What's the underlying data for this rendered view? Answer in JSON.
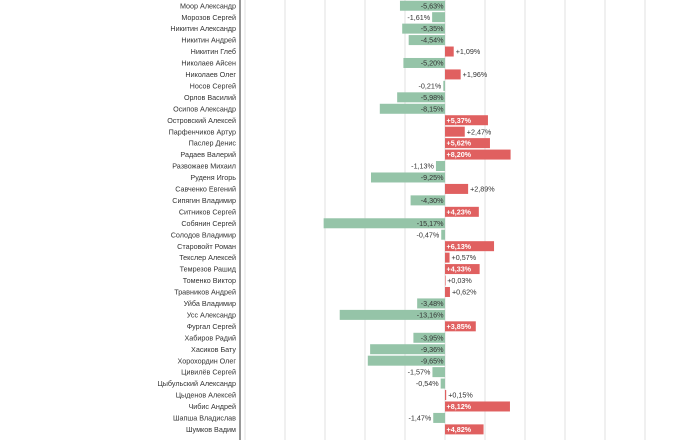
{
  "chart_data": {
    "type": "bar",
    "orientation": "horizontal",
    "grid": true,
    "xlim": [
      -30,
      25
    ],
    "grid_step": 5,
    "colors": {
      "positive": "#e06060",
      "negative": "#95c4a8",
      "grid": "#e2e2e2",
      "axis": "#333333"
    },
    "categories": [
      "Моор Александр",
      "Морозов Сергей",
      "Никитин Александр",
      "Никитин Андрей",
      "Никитин Глеб",
      "Николаев Айсен",
      "Николаев Олег",
      "Носов Сергей",
      "Орлов Василий",
      "Осипов Александр",
      "Островский Алексей",
      "Парфенчиков Артур",
      "Паслер Денис",
      "Радаев Валерий",
      "Развожаев Михаил",
      "Руденя Игорь",
      "Савченко Евгений",
      "Сипягин Владимир",
      "Ситников Сергей",
      "Собянин Сергей",
      "Солодов Владимир",
      "Старовойт Роман",
      "Текслер Алексей",
      "Темрезов Рашид",
      "Томенко Виктор",
      "Травников Андрей",
      "Уйба Владимир",
      "Усс Александр",
      "Фургал Сергей",
      "Хабиров Радий",
      "Хасиков Бату",
      "Хорохордин Олег",
      "Цивилёв Сергей",
      "Цыбульский Александр",
      "Цыденов Алексей",
      "Чибис Андрей",
      "Шапша Владислав",
      "Шумков Вадим"
    ],
    "values": [
      -5.63,
      -1.61,
      -5.35,
      -4.54,
      1.09,
      -5.2,
      1.96,
      -0.21,
      -5.98,
      -8.15,
      5.37,
      2.47,
      5.62,
      8.2,
      -1.13,
      -9.25,
      2.89,
      -4.3,
      4.23,
      -15.17,
      -0.47,
      6.13,
      0.57,
      4.33,
      0.03,
      0.62,
      -3.48,
      -13.16,
      3.85,
      -3.95,
      -9.36,
      -9.65,
      -1.57,
      -0.54,
      0.15,
      8.12,
      -1.47,
      4.82
    ],
    "labels": [
      "-5,63%",
      "-1,61%",
      "-5,35%",
      "-4,54%",
      "+1,09%",
      "-5,20%",
      "+1,96%",
      "-0,21%",
      "-5,98%",
      "-8,15%",
      "+5,37%",
      "+2,47%",
      "+5,62%",
      "+8,20%",
      "-1,13%",
      "-9,25%",
      "+2,89%",
      "-4,30%",
      "+4,23%",
      "-15,17%",
      "-0,47%",
      "+6,13%",
      "+0,57%",
      "+4,33%",
      "+0,03%",
      "+0,62%",
      "-3,48%",
      "-13,16%",
      "+3,85%",
      "-3,95%",
      "-9,36%",
      "-9,65%",
      "-1,57%",
      "-0,54%",
      "+0,15%",
      "+8,12%",
      "-1,47%",
      "+4,82%"
    ]
  }
}
